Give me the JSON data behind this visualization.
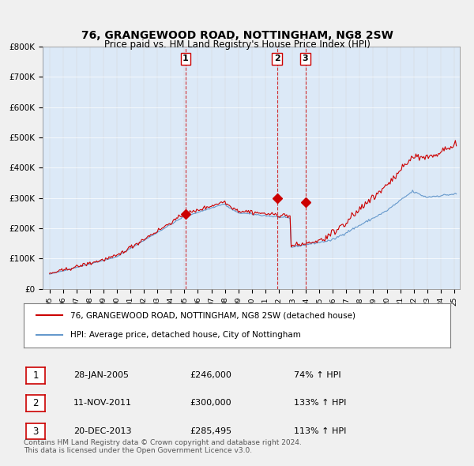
{
  "title": "76, GRANGEWOOD ROAD, NOTTINGHAM, NG8 2SW",
  "subtitle": "Price paid vs. HM Land Registry's House Price Index (HPI)",
  "bg_color": "#dce9f7",
  "plot_bg_color": "#dce9f7",
  "red_line_color": "#cc0000",
  "blue_line_color": "#6699cc",
  "sale_marker_color": "#cc0000",
  "dashed_line_color": "#cc0000",
  "sales": [
    {
      "date": "2005-01-28",
      "price": 246000,
      "label": "1"
    },
    {
      "date": "2011-11-11",
      "price": 300000,
      "label": "2"
    },
    {
      "date": "2013-12-20",
      "price": 285495,
      "label": "3"
    }
  ],
  "legend_items": [
    {
      "label": "76, GRANGEWOOD ROAD, NOTTINGHAM, NG8 2SW (detached house)",
      "color": "#cc0000"
    },
    {
      "label": "HPI: Average price, detached house, City of Nottingham",
      "color": "#6699cc"
    }
  ],
  "table_rows": [
    {
      "num": "1",
      "date": "28-JAN-2005",
      "price": "£246,000",
      "hpi": "74% ↑ HPI"
    },
    {
      "num": "2",
      "date": "11-NOV-2011",
      "price": "£300,000",
      "hpi": "133% ↑ HPI"
    },
    {
      "num": "3",
      "date": "20-DEC-2013",
      "price": "£285,495",
      "hpi": "113% ↑ HPI"
    }
  ],
  "footer": "Contains HM Land Registry data © Crown copyright and database right 2024.\nThis data is licensed under the Open Government Licence v3.0.",
  "ylim": [
    0,
    800000
  ],
  "yticks": [
    0,
    100000,
    200000,
    300000,
    400000,
    500000,
    600000,
    700000,
    800000
  ],
  "ytick_labels": [
    "£0",
    "£100K",
    "£200K",
    "£300K",
    "£400K",
    "£500K",
    "£600K",
    "£700K",
    "£800K"
  ]
}
